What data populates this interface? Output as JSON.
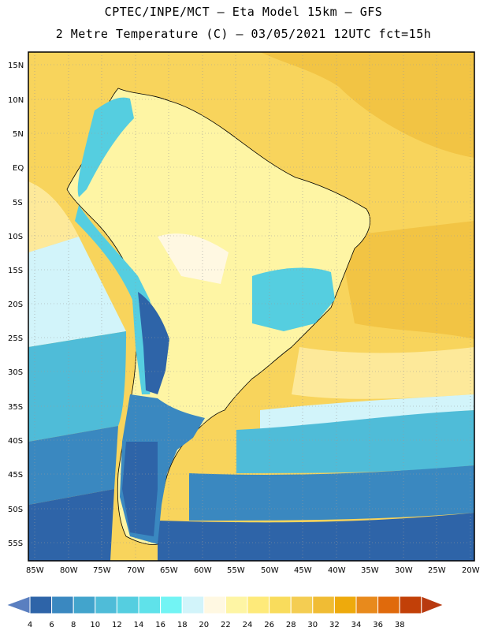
{
  "title_line1": "CPTEC/INPE/MCT –  Eta Model 15km – GFS",
  "title_line2": "2 Metre Temperature (C) – 03/05/2021 12UTC fct=15h",
  "lat_labels": [
    "15N",
    "10N",
    "5N",
    "EQ",
    "5S",
    "10S",
    "15S",
    "20S",
    "25S",
    "30S",
    "35S",
    "40S",
    "45S",
    "50S",
    "55S"
  ],
  "lon_labels": [
    "85W",
    "80W",
    "75W",
    "70W",
    "65W",
    "60W",
    "55W",
    "50W",
    "45W",
    "40W",
    "35W",
    "30W",
    "25W",
    "20W"
  ],
  "colorbar": {
    "values": [
      "4",
      "6",
      "8",
      "10",
      "12",
      "14",
      "16",
      "18",
      "20",
      "22",
      "24",
      "26",
      "28",
      "30",
      "32",
      "34",
      "36",
      "38"
    ],
    "colors": [
      "#5a7fc0",
      "#2e64a8",
      "#3a88c0",
      "#42a4cc",
      "#4fbcd8",
      "#55cee0",
      "#5fe2ea",
      "#72f4f4",
      "#d2f4fa",
      "#fff8e2",
      "#fef5a4",
      "#feea7a",
      "#f9dc5c",
      "#f4cd52",
      "#f0bc34",
      "#eeaa0c",
      "#e88a1c",
      "#e06a0c",
      "#c24008",
      "#b83a10"
    ]
  },
  "map_colors": {
    "ocean_north": "#f8d45c",
    "ocean_north_warm": "#f2c444",
    "ocean_mid": "#fde99a",
    "ocean_cool": "#d2f4fa",
    "ocean_cold": "#4fbcd8",
    "ocean_colder": "#3a88c0",
    "ocean_coldest": "#2e64a8",
    "land_warm": "#fef5a4",
    "land_mild": "#fff8e2",
    "andes": "#55cee0",
    "andes_high": "#2e64a8",
    "patagonia": "#3a88c0"
  }
}
